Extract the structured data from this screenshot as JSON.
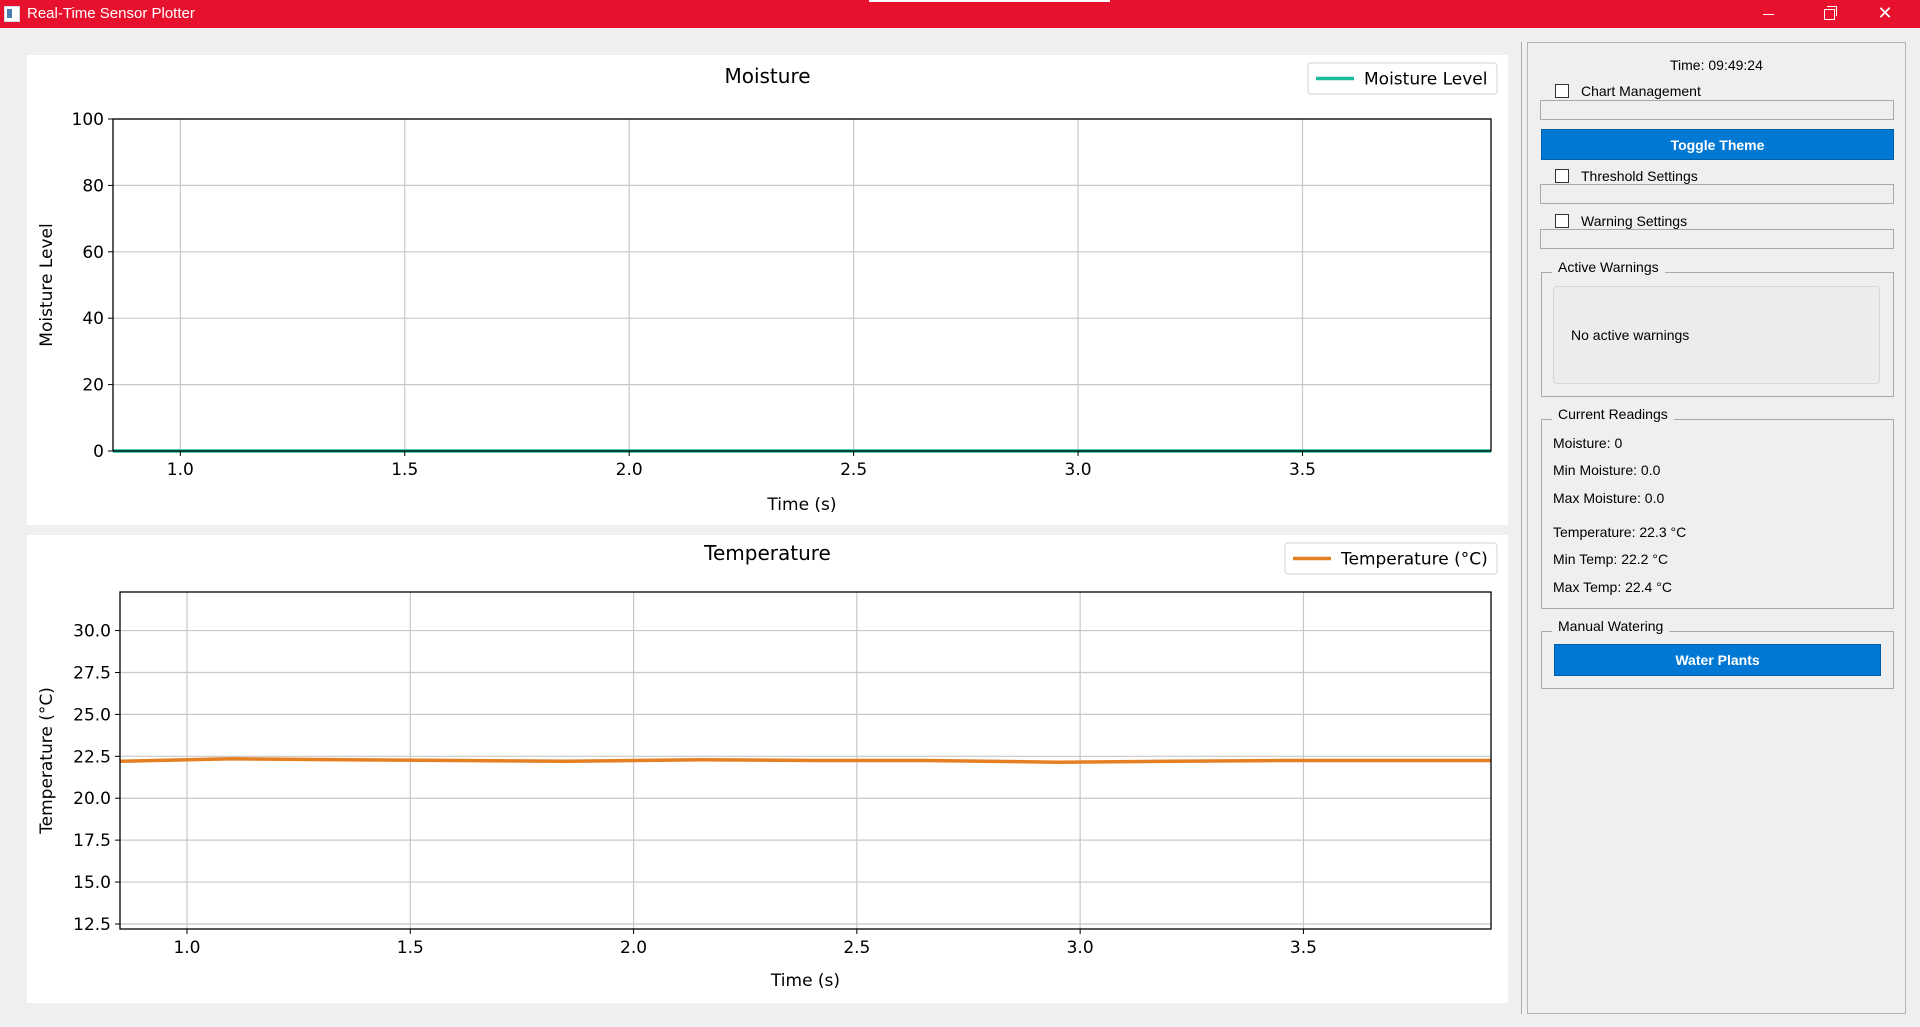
{
  "window": {
    "title": "Real-Time Sensor Plotter"
  },
  "colors": {
    "titlebar": "#e8112d",
    "accent": "#0078d4",
    "moisture_line": "#1abc9c",
    "temperature_line": "#e67e22"
  },
  "sidebar": {
    "time_label": "Time: 09:49:24",
    "chart_management_label": "Chart Management",
    "toggle_theme_label": "Toggle Theme",
    "threshold_settings_label": "Threshold Settings",
    "warning_settings_label": "Warning Settings",
    "active_warnings": {
      "title": "Active Warnings",
      "message": "No active warnings"
    },
    "current_readings": {
      "title": "Current Readings",
      "moisture": "Moisture: 0",
      "min_moisture": "Min Moisture: 0.0",
      "max_moisture": "Max Moisture: 0.0",
      "temperature": "Temperature: 22.3 °C",
      "min_temp": "Min Temp: 22.2 °C",
      "max_temp": "Max Temp: 22.4 °C"
    },
    "manual_watering": {
      "title": "Manual Watering",
      "button_label": "Water Plants"
    }
  },
  "chart_data": [
    {
      "type": "line",
      "title": "Moisture",
      "xlabel": "Time (s)",
      "ylabel": "Moisture Level",
      "xlim": [
        0.85,
        3.92
      ],
      "ylim": [
        0,
        100
      ],
      "xticks": [
        1.0,
        1.5,
        2.0,
        2.5,
        3.0,
        3.5
      ],
      "xtick_labels": [
        "1.0",
        "1.5",
        "2.0",
        "2.5",
        "3.0",
        "3.5"
      ],
      "yticks": [
        0,
        20,
        40,
        60,
        80,
        100
      ],
      "ytick_labels": [
        "0",
        "20",
        "40",
        "60",
        "80",
        "100"
      ],
      "grid": true,
      "legend": "top-right",
      "series": [
        {
          "name": "Moisture Level",
          "color": "#1abc9c",
          "x": [
            0.85,
            1.0,
            1.5,
            2.0,
            2.5,
            3.0,
            3.5,
            3.92
          ],
          "y": [
            0,
            0,
            0,
            0,
            0,
            0,
            0,
            0
          ]
        }
      ]
    },
    {
      "type": "line",
      "title": "Temperature",
      "xlabel": "Time (s)",
      "ylabel": "Temperature (°C)",
      "xlim": [
        0.85,
        3.92
      ],
      "ylim": [
        12.2,
        32.3
      ],
      "xticks": [
        1.0,
        1.5,
        2.0,
        2.5,
        3.0,
        3.5
      ],
      "xtick_labels": [
        "1.0",
        "1.5",
        "2.0",
        "2.5",
        "3.0",
        "3.5"
      ],
      "yticks": [
        12.5,
        15.0,
        17.5,
        20.0,
        22.5,
        25.0,
        27.5,
        30.0
      ],
      "ytick_labels": [
        "12.5",
        "15.0",
        "17.5",
        "20.0",
        "22.5",
        "25.0",
        "27.5",
        "30.0"
      ],
      "grid": true,
      "legend": "top-right",
      "series": [
        {
          "name": "Temperature (°C)",
          "color": "#e67e22",
          "x": [
            0.85,
            1.1,
            1.35,
            1.6,
            1.85,
            2.15,
            2.4,
            2.65,
            2.95,
            3.2,
            3.45,
            3.7,
            3.92
          ],
          "y": [
            22.2,
            22.35,
            22.3,
            22.25,
            22.2,
            22.3,
            22.25,
            22.25,
            22.15,
            22.2,
            22.25,
            22.25,
            22.25
          ]
        }
      ]
    }
  ]
}
